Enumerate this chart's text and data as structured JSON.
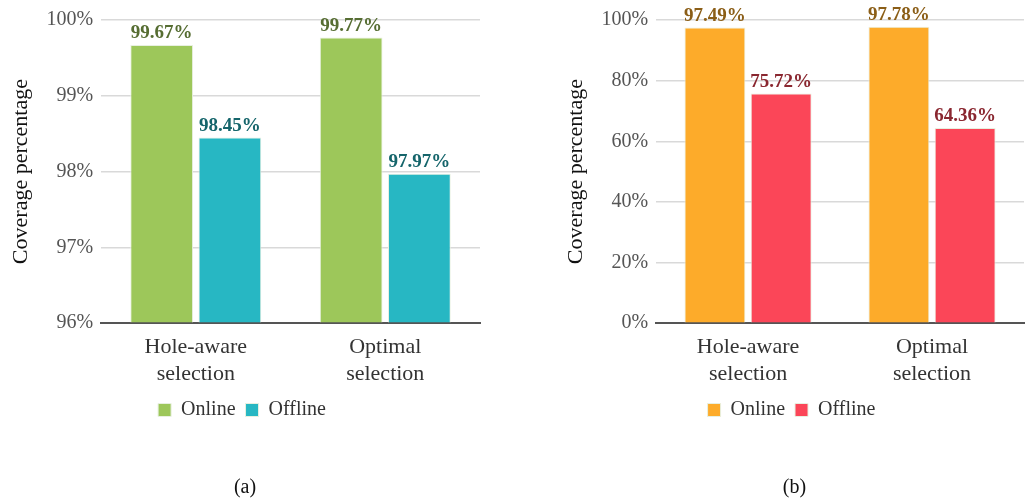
{
  "chart_data": [
    {
      "type": "bar",
      "ylabel": "Coverage percentage",
      "categories": [
        "Hole-aware selection",
        "Optimal selection"
      ],
      "series": [
        {
          "name": "Online",
          "color": "#9dc75a",
          "values": [
            99.67,
            99.77
          ],
          "value_labels": [
            "99.67%",
            "99.77%"
          ]
        },
        {
          "name": "Offline",
          "color": "#27b7c3",
          "values": [
            98.45,
            97.97
          ],
          "value_labels": [
            "98.45%",
            "97.97%"
          ]
        }
      ],
      "ylim": [
        96,
        100
      ],
      "yticks": [
        {
          "value": 96,
          "label": "96%"
        },
        {
          "value": 97,
          "label": "97%"
        },
        {
          "value": 98,
          "label": "98%"
        },
        {
          "value": 99,
          "label": "99%"
        },
        {
          "value": 100,
          "label": "100%"
        }
      ],
      "grid": "y",
      "legend": "bottom",
      "annotations": [
        "(a)"
      ]
    },
    {
      "type": "bar",
      "ylabel": "Coverage percentage",
      "categories": [
        "Hole-aware selection",
        "Optimal selection"
      ],
      "series": [
        {
          "name": "Online",
          "color": "#fdab2a",
          "values": [
            97.49,
            97.78
          ],
          "value_labels": [
            "97.49%",
            "97.78%"
          ]
        },
        {
          "name": "Offline",
          "color": "#fb4658",
          "values": [
            75.72,
            64.36
          ],
          "value_labels": [
            "75.72%",
            "64.36%"
          ]
        }
      ],
      "ylim": [
        0,
        100
      ],
      "yticks": [
        {
          "value": 0,
          "label": "0%"
        },
        {
          "value": 20,
          "label": "20%"
        },
        {
          "value": 40,
          "label": "40%"
        },
        {
          "value": 60,
          "label": "60%"
        },
        {
          "value": 80,
          "label": "80%"
        },
        {
          "value": 100,
          "label": "100%"
        }
      ],
      "grid": "y",
      "legend": "bottom",
      "annotations": [
        "(b)"
      ]
    }
  ]
}
